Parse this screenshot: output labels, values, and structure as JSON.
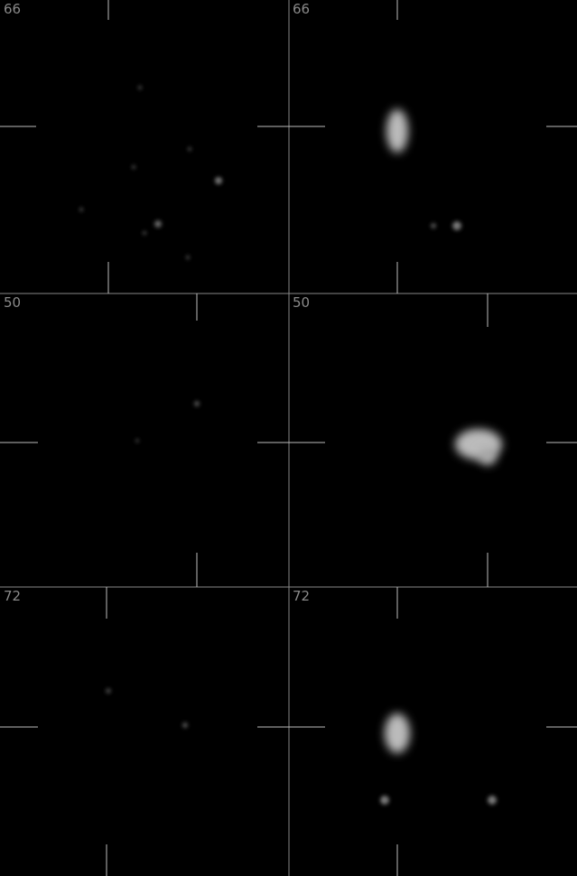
{
  "panels": [
    {
      "label": "66"
    },
    {
      "label": "66"
    },
    {
      "label": "50"
    },
    {
      "label": "50"
    },
    {
      "label": "72"
    },
    {
      "label": "72"
    }
  ]
}
